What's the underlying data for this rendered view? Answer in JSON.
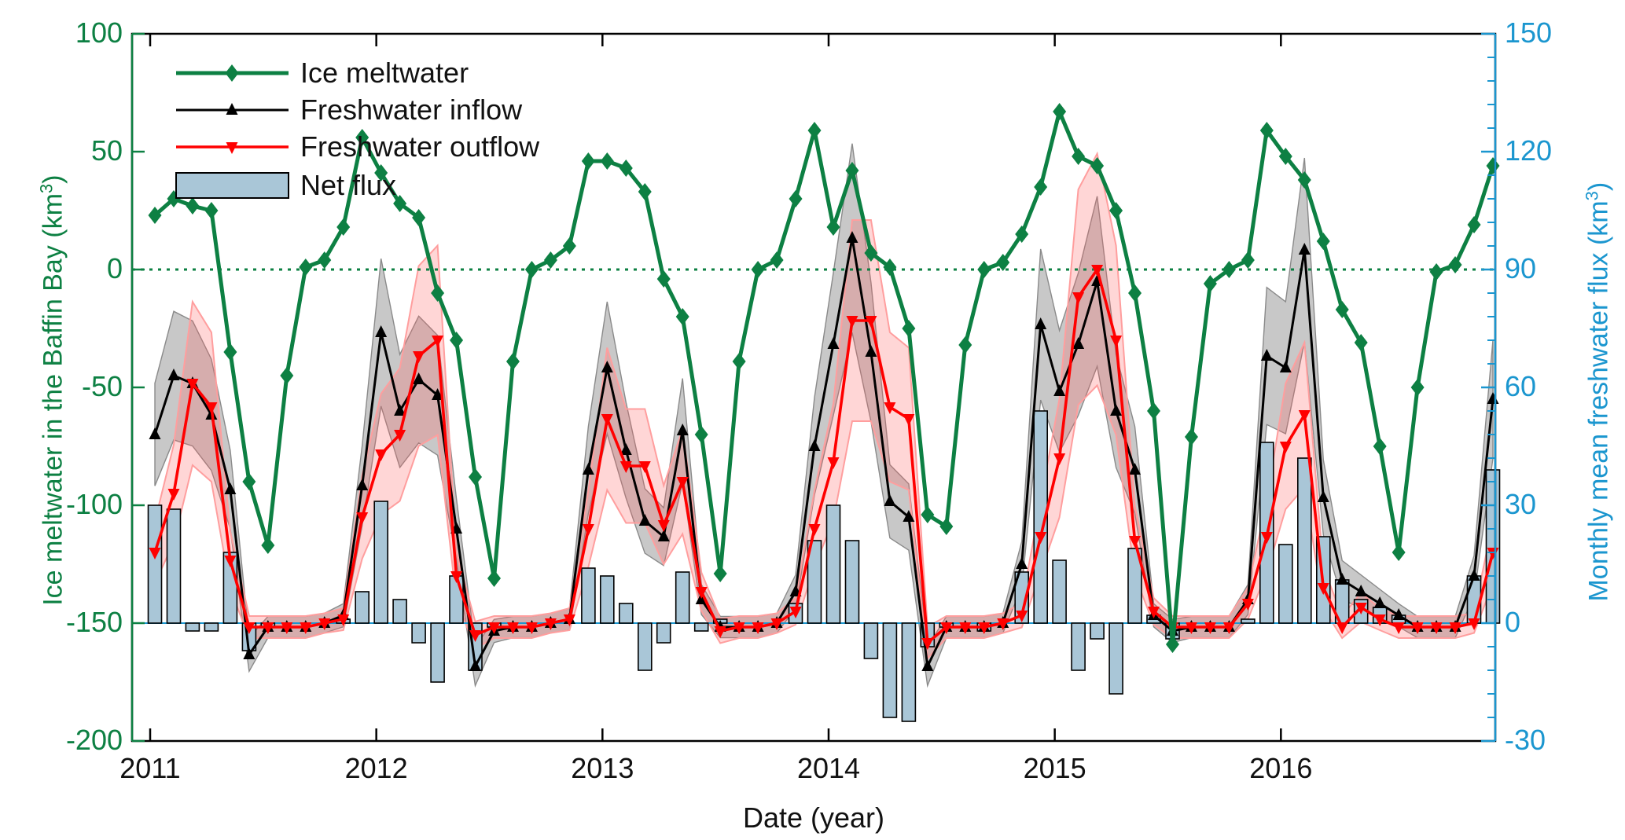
{
  "figure": {
    "x_axis_label": "Date (year)",
    "y_left_label_prefix": "Ice meltwater in the Baffin Bay (km",
    "y_left_label_sup": "3",
    "y_left_label_suffix": ")",
    "y_right_label_prefix": "Monthly mean freshwater flux (km",
    "y_right_label_sup": "3",
    "y_right_label_suffix": ")"
  },
  "legend": {
    "items": [
      {
        "key": "ice",
        "label": "Ice meltwater",
        "type": "line",
        "color": "#0d8043",
        "marker": "diamond"
      },
      {
        "key": "inflow",
        "label": "Freshwater inflow",
        "type": "line",
        "color": "#000000",
        "marker": "triangle-up"
      },
      {
        "key": "outflow",
        "label": "Freshwater outflow",
        "type": "line",
        "color": "#ff0000",
        "marker": "triangle-down"
      },
      {
        "key": "net",
        "label": "Net flux",
        "type": "bar",
        "color": "#a9c6d7"
      }
    ]
  },
  "colors": {
    "green": "#0d8043",
    "black": "#000000",
    "red": "#ff0000",
    "bar_fill": "#a9c6d7",
    "bar_edge": "#000000",
    "right_axis": "#1b96cf",
    "gray_band": "rgba(110,110,110,0.38)",
    "gray_band_edge": "#8a8a8a",
    "pink_band": "rgba(255,90,90,0.25)",
    "pink_band_edge": "#ff9e9e",
    "frame": "#000000"
  },
  "chart_data": {
    "type": "line+bar",
    "title": "",
    "xlabel": "Date (year)",
    "ylabel_left": "Ice meltwater in the Baffin Bay (km3)",
    "ylabel_right": "Monthly mean freshwater flux (km3)",
    "x_start": "2011-01",
    "x_end": "2016-12",
    "x_resolution": "monthly",
    "x_tick_years": [
      2011,
      2012,
      2013,
      2014,
      2015,
      2016
    ],
    "y_left_ticks": [
      100,
      50,
      0,
      -50,
      -100,
      -150,
      -200
    ],
    "y_left_range": [
      -200,
      100
    ],
    "y_right_ticks": [
      150,
      120,
      90,
      60,
      30,
      0,
      -30
    ],
    "y_right_minor_step": 6,
    "y_right_range": [
      -30,
      150
    ],
    "zero_line_left_axis": {
      "value": 0,
      "style": "dotted",
      "color": "#0d8043"
    },
    "zero_line_right_axis": {
      "value": 0,
      "style": "solid",
      "color": "#1b96cf"
    },
    "grid": false,
    "legend_position": "top-left",
    "uncertainty_band_model": {
      "inflow": [
        2.5,
        0.22
      ],
      "outflow": [
        2.5,
        0.3
      ]
    },
    "series": [
      {
        "name": "Ice meltwater",
        "axis": "left",
        "kind": "line",
        "color": "#0d8043",
        "marker": "diamond",
        "values": [
          23,
          30,
          27,
          25,
          -35,
          -90,
          -117,
          -45,
          1,
          4,
          18,
          56,
          41,
          28,
          22,
          -10,
          -30,
          -88,
          -131,
          -39,
          0,
          4,
          10,
          46,
          46,
          43,
          33,
          -4,
          -20,
          -70,
          -129,
          -39,
          0,
          4,
          30,
          59,
          18,
          42,
          7,
          1,
          -25,
          -104,
          -109,
          -32,
          0,
          3,
          15,
          35,
          67,
          48,
          44,
          25,
          -10,
          -60,
          -159,
          -71,
          -6,
          0,
          4,
          59,
          48,
          38,
          12,
          -17,
          -31,
          -75,
          -120,
          -50,
          -1,
          2,
          19,
          44
        ]
      },
      {
        "name": "Freshwater inflow",
        "axis": "right",
        "kind": "line",
        "color": "#000000",
        "marker": "triangle-up",
        "values": [
          48,
          63,
          61,
          53,
          34,
          -8,
          -1,
          -1,
          -1,
          0,
          2,
          35,
          74,
          54,
          62,
          58,
          24,
          -11,
          -2,
          -1,
          -1,
          0,
          1,
          39,
          65,
          44,
          26,
          22,
          49,
          6,
          -1,
          -1,
          -1,
          0,
          8,
          45,
          71,
          98,
          69,
          31,
          27,
          -11,
          -1,
          -1,
          -1,
          0,
          15,
          76,
          59,
          71,
          87,
          54,
          39,
          2,
          -2,
          -1,
          -1,
          -1,
          6,
          68,
          65,
          95,
          32,
          11,
          8,
          5,
          2,
          -1,
          -1,
          -1,
          12,
          57
        ]
      },
      {
        "name": "Freshwater outflow",
        "axis": "right",
        "kind": "line",
        "color": "#ff0000",
        "marker": "triangle-down",
        "values": [
          18,
          33,
          61,
          55,
          16,
          -1,
          -1,
          -1,
          -1,
          0,
          1,
          27,
          43,
          48,
          68,
          72,
          12,
          -3,
          -1,
          -1,
          -1,
          0,
          1,
          24,
          52,
          40,
          40,
          25,
          36,
          8,
          -2,
          -1,
          -1,
          0,
          3,
          24,
          41,
          77,
          77,
          55,
          52,
          -5,
          -1,
          -1,
          -1,
          0,
          2,
          22,
          42,
          83,
          90,
          72,
          21,
          3,
          -1,
          -1,
          -1,
          -1,
          5,
          22,
          45,
          53,
          9,
          -1,
          4,
          1,
          -1,
          -1,
          -1,
          -1,
          0,
          18
        ]
      },
      {
        "name": "Net flux",
        "axis": "right",
        "kind": "bar",
        "color": "#a9c6d7",
        "values": [
          30,
          29,
          -2,
          -2,
          18,
          -7,
          -1,
          0,
          0,
          0,
          1,
          8,
          31,
          6,
          -5,
          -15,
          12,
          -12,
          -1,
          0,
          0,
          0,
          0,
          14,
          12,
          5,
          -12,
          -5,
          13,
          -2,
          1,
          0,
          0,
          0,
          5,
          21,
          30,
          21,
          -9,
          -24,
          -25,
          -6,
          -1,
          0,
          -2,
          0,
          13,
          54,
          16,
          -12,
          -4,
          -18,
          19,
          2,
          -4,
          0,
          0,
          0,
          1,
          46,
          20,
          42,
          22,
          11,
          6,
          4,
          2,
          0,
          0,
          0,
          12,
          39
        ]
      }
    ]
  }
}
